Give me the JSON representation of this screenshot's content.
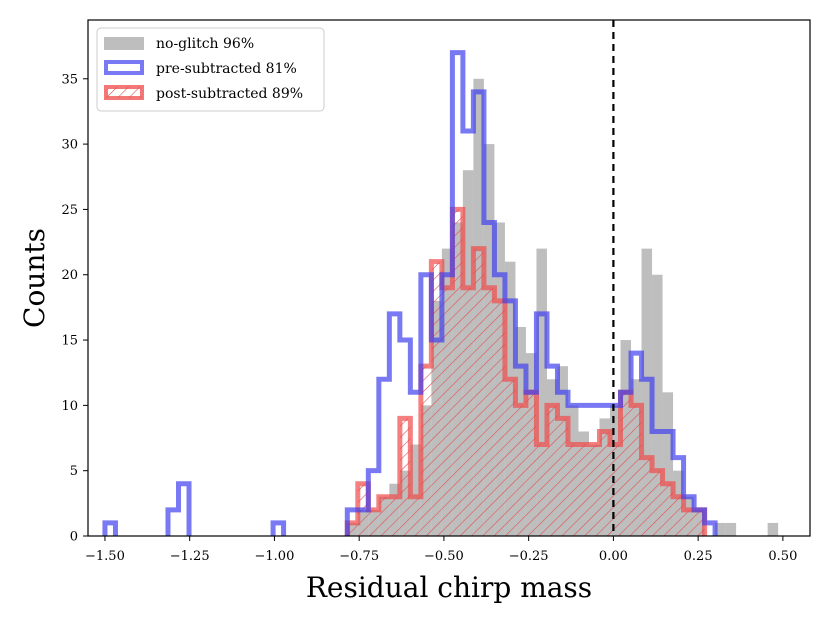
{
  "chart_data": {
    "type": "histogram",
    "xlabel": "Residual chirp mass",
    "ylabel": "Counts",
    "xlim": [
      -1.55,
      0.58
    ],
    "ylim": [
      0,
      39.5
    ],
    "xticks": [
      -1.5,
      -1.25,
      -1.0,
      -0.75,
      -0.5,
      -0.25,
      0.0,
      0.25,
      0.5
    ],
    "xtick_labels": [
      "−1.50",
      "−1.25",
      "−1.00",
      "−0.75",
      "−0.50",
      "−0.25",
      "0.00",
      "0.25",
      "0.50"
    ],
    "yticks": [
      0,
      5,
      10,
      15,
      20,
      25,
      30,
      35
    ],
    "ytick_labels": [
      "0",
      "5",
      "10",
      "15",
      "20",
      "25",
      "30",
      "35"
    ],
    "vline_x": 0.0,
    "bin_width": 0.031,
    "legend": {
      "position": "upper-left",
      "entries": [
        {
          "key": "noglitch",
          "label": "no-glitch 96%"
        },
        {
          "key": "pre",
          "label": "pre-subtracted 81%"
        },
        {
          "key": "post",
          "label": "post-subtracted 89%"
        }
      ]
    },
    "series": [
      {
        "key": "noglitch",
        "name": "no-glitch 96%",
        "style": "filled",
        "color": "#a8a8a8",
        "counts": [
          [
            -0.785,
            1
          ],
          [
            -0.754,
            2
          ],
          [
            -0.723,
            2
          ],
          [
            -0.692,
            3
          ],
          [
            -0.661,
            4
          ],
          [
            -0.63,
            5
          ],
          [
            -0.599,
            7
          ],
          [
            -0.568,
            10
          ],
          [
            -0.537,
            18
          ],
          [
            -0.506,
            22
          ],
          [
            -0.475,
            24
          ],
          [
            -0.444,
            28
          ],
          [
            -0.413,
            35
          ],
          [
            -0.382,
            30
          ],
          [
            -0.351,
            24
          ],
          [
            -0.32,
            21
          ],
          [
            -0.289,
            16
          ],
          [
            -0.258,
            14
          ],
          [
            -0.227,
            22
          ],
          [
            -0.196,
            12
          ],
          [
            -0.165,
            13
          ],
          [
            -0.134,
            10
          ],
          [
            -0.103,
            8
          ],
          [
            -0.072,
            7
          ],
          [
            -0.041,
            9
          ],
          [
            -0.01,
            10
          ],
          [
            0.021,
            15
          ],
          [
            0.052,
            12
          ],
          [
            0.083,
            22
          ],
          [
            0.114,
            20
          ],
          [
            0.145,
            11
          ],
          [
            0.176,
            5
          ],
          [
            0.207,
            3
          ],
          [
            0.238,
            2
          ],
          [
            0.3,
            1
          ],
          [
            0.331,
            1
          ],
          [
            0.455,
            1
          ]
        ]
      },
      {
        "key": "pre",
        "name": "pre-subtracted 81%",
        "style": "step",
        "color": "#4040ee",
        "counts": [
          [
            -1.5,
            1
          ],
          [
            -1.314,
            2
          ],
          [
            -1.283,
            4
          ],
          [
            -1.004,
            1
          ],
          [
            -0.785,
            2
          ],
          [
            -0.754,
            2
          ],
          [
            -0.723,
            5
          ],
          [
            -0.692,
            12
          ],
          [
            -0.661,
            17
          ],
          [
            -0.63,
            15
          ],
          [
            -0.599,
            11
          ],
          [
            -0.568,
            20
          ],
          [
            -0.537,
            15
          ],
          [
            -0.506,
            20
          ],
          [
            -0.475,
            37
          ],
          [
            -0.444,
            31
          ],
          [
            -0.413,
            34
          ],
          [
            -0.382,
            24
          ],
          [
            -0.351,
            20
          ],
          [
            -0.32,
            18
          ],
          [
            -0.289,
            13
          ],
          [
            -0.258,
            11
          ],
          [
            -0.227,
            17
          ],
          [
            -0.196,
            13
          ],
          [
            -0.165,
            11
          ],
          [
            -0.134,
            10
          ],
          [
            -0.103,
            10
          ],
          [
            -0.072,
            10
          ],
          [
            -0.041,
            10
          ],
          [
            -0.01,
            10
          ],
          [
            0.021,
            11
          ],
          [
            0.052,
            14
          ],
          [
            0.083,
            12
          ],
          [
            0.114,
            8
          ],
          [
            0.145,
            8
          ],
          [
            0.176,
            6
          ],
          [
            0.207,
            3
          ],
          [
            0.238,
            2
          ],
          [
            0.269,
            1
          ]
        ]
      },
      {
        "key": "post",
        "name": "post-subtracted 89%",
        "style": "hatched",
        "color": "#ef4a4a",
        "counts": [
          [
            -0.785,
            1
          ],
          [
            -0.754,
            4
          ],
          [
            -0.723,
            2
          ],
          [
            -0.692,
            3
          ],
          [
            -0.661,
            3
          ],
          [
            -0.63,
            9
          ],
          [
            -0.599,
            3
          ],
          [
            -0.568,
            13
          ],
          [
            -0.537,
            21
          ],
          [
            -0.506,
            19
          ],
          [
            -0.475,
            25
          ],
          [
            -0.444,
            19
          ],
          [
            -0.413,
            22
          ],
          [
            -0.382,
            19
          ],
          [
            -0.351,
            18
          ],
          [
            -0.32,
            12
          ],
          [
            -0.289,
            10
          ],
          [
            -0.258,
            11
          ],
          [
            -0.227,
            7
          ],
          [
            -0.196,
            10
          ],
          [
            -0.165,
            9
          ],
          [
            -0.134,
            7
          ],
          [
            -0.103,
            7
          ],
          [
            -0.072,
            7
          ],
          [
            -0.041,
            8
          ],
          [
            -0.01,
            7
          ],
          [
            0.021,
            11
          ],
          [
            0.052,
            10
          ],
          [
            0.083,
            6
          ],
          [
            0.114,
            5
          ],
          [
            0.145,
            4
          ],
          [
            0.176,
            3
          ],
          [
            0.207,
            2
          ],
          [
            0.238,
            2
          ]
        ]
      }
    ]
  }
}
